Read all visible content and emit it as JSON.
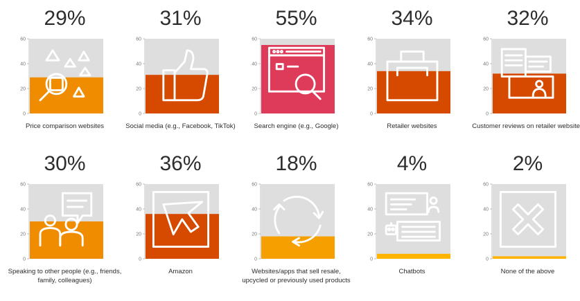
{
  "chart_data": {
    "type": "bar",
    "ylim": [
      0,
      60
    ],
    "yticks": [
      "0",
      "20",
      "40",
      "60"
    ],
    "categories": [
      {
        "label": "Price comparison websites",
        "value": 29,
        "display": "29%",
        "color": "#f08c00",
        "icon": "price-comparison-icon"
      },
      {
        "label": "Social media (e.g., Facebook, TikTok)",
        "value": 31,
        "display": "31%",
        "color": "#d64a00",
        "icon": "thumbs-up-icon"
      },
      {
        "label": "Search engine (e.g., Google)",
        "value": 55,
        "display": "55%",
        "color": "#de3a5a",
        "icon": "browser-search-icon"
      },
      {
        "label": "Retailer websites",
        "value": 34,
        "display": "34%",
        "color": "#d64a00",
        "icon": "shopping-bag-icon"
      },
      {
        "label": "Customer reviews on retailer websites",
        "value": 32,
        "display": "32%",
        "color": "#d64a00",
        "icon": "review-documents-icon"
      },
      {
        "label": "Speaking to other people (e.g., friends, family, colleagues)",
        "value": 30,
        "display": "30%",
        "color": "#f08c00",
        "icon": "people-talking-icon"
      },
      {
        "label": "Amazon",
        "value": 36,
        "display": "36%",
        "color": "#d64a00",
        "icon": "cursor-arrow-icon"
      },
      {
        "label": "Websites/apps that sell resale, upcycled or previously used products",
        "value": 18,
        "display": "18%",
        "color": "#f5a000",
        "icon": "recycle-icon"
      },
      {
        "label": "Chatbots",
        "value": 4,
        "display": "4%",
        "color": "#ffb400",
        "icon": "chatbot-icon"
      },
      {
        "label": "None of the above",
        "value": 2,
        "display": "2%",
        "color": "#ffb400",
        "icon": "cross-icon"
      }
    ],
    "background_color": "#dedede",
    "icon_color": "#ffffff"
  }
}
